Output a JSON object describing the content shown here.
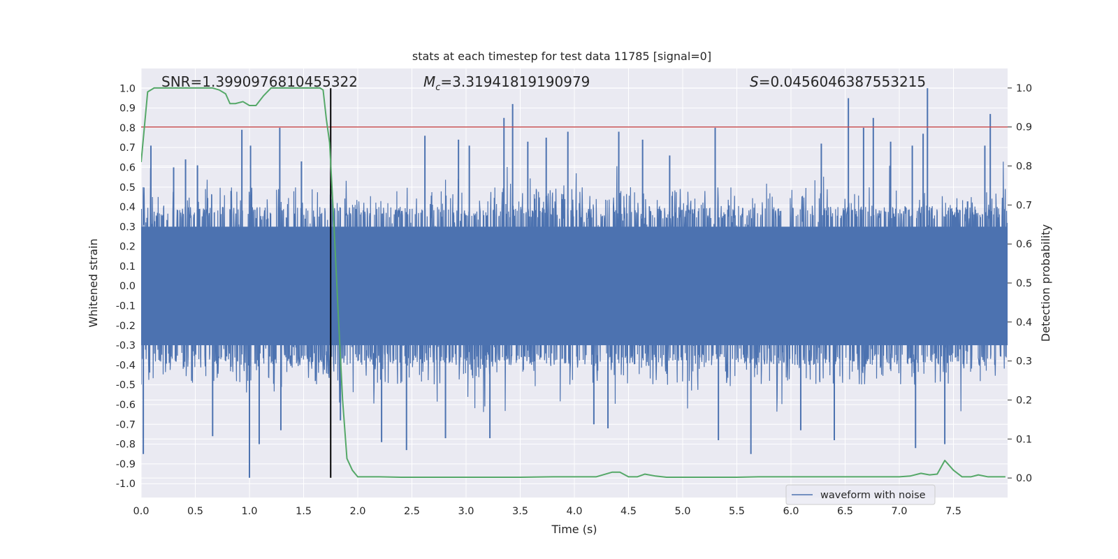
{
  "chart_data": {
    "type": "line",
    "title": "stats at each timestep for test data 11785 [signal=0]",
    "xlabel": "Time (s)",
    "ylabel": "Whitened strain",
    "y2label": "Detection probability",
    "xlim": [
      0.0,
      8.0
    ],
    "ylim": [
      -1.07,
      1.1
    ],
    "y2lim": [
      -0.05,
      1.05
    ],
    "x_ticks": [
      0.0,
      0.5,
      1.0,
      1.5,
      2.0,
      2.5,
      3.0,
      3.5,
      4.0,
      4.5,
      5.0,
      5.5,
      6.0,
      6.5,
      7.0,
      7.5
    ],
    "x_tick_labels": [
      "0.0",
      "0.5",
      "1.0",
      "1.5",
      "2.0",
      "2.5",
      "3.0",
      "3.5",
      "4.0",
      "4.5",
      "5.0",
      "5.5",
      "6.0",
      "6.5",
      "7.0",
      "7.5"
    ],
    "y_ticks": [
      1.0,
      0.9,
      0.8,
      0.7,
      0.6,
      0.5,
      0.4,
      0.3,
      0.2,
      0.1,
      0.0,
      -0.1,
      -0.2,
      -0.3,
      -0.4,
      -0.5,
      -0.6,
      -0.7,
      -0.8,
      -0.9,
      -1.0
    ],
    "y_tick_labels": [
      "1.0",
      "0.9",
      "0.8",
      "0.7",
      "0.6",
      "0.5",
      "0.4",
      "0.3",
      "0.2",
      "0.1",
      "0.0",
      "-0.1",
      "-0.2",
      "-0.3",
      "-0.4",
      "-0.5",
      "-0.6",
      "-0.7",
      "-0.8",
      "-0.9",
      "-1.0"
    ],
    "y2_ticks": [
      1.0,
      0.9,
      0.8,
      0.7,
      0.6,
      0.5,
      0.4,
      0.3,
      0.2,
      0.1,
      0.0
    ],
    "y2_tick_labels": [
      "1.0",
      "0.9",
      "0.8",
      "0.7",
      "0.6",
      "0.5",
      "0.4",
      "0.3",
      "0.2",
      "0.1",
      "0.0"
    ],
    "annotations": {
      "snr": "SNR=1.3990976810455322",
      "mc_symbol": "M",
      "mc_sub": "c",
      "mc_value": "=3.31941819190979",
      "s_symbol": "S",
      "s_value": "=0.0456046387553215"
    },
    "threshold_y2": 0.9,
    "detection_time": 1.75,
    "legend": {
      "label": "waveform with noise",
      "placement": "lower-right"
    },
    "waveform": {
      "name": "waveform with noise",
      "description": "dense noisy whitened strain, core roughly ±0.4 with spikes",
      "core_amplitude": 0.38,
      "spikes": [
        [
          0.02,
          -0.85
        ],
        [
          0.09,
          0.71
        ],
        [
          0.3,
          0.6
        ],
        [
          0.41,
          0.64
        ],
        [
          0.52,
          0.61
        ],
        [
          0.66,
          -0.76
        ],
        [
          0.93,
          0.79
        ],
        [
          1.0,
          -0.97
        ],
        [
          1.01,
          0.71
        ],
        [
          1.09,
          -0.8
        ],
        [
          1.28,
          0.8
        ],
        [
          1.29,
          -0.73
        ],
        [
          1.48,
          0.63
        ],
        [
          1.75,
          0.49
        ],
        [
          1.84,
          -0.68
        ],
        [
          2.22,
          -0.79
        ],
        [
          2.45,
          -0.83
        ],
        [
          2.62,
          0.76
        ],
        [
          2.81,
          -0.77
        ],
        [
          2.93,
          0.74
        ],
        [
          3.03,
          0.71
        ],
        [
          3.22,
          -0.77
        ],
        [
          3.35,
          0.85
        ],
        [
          3.43,
          0.92
        ],
        [
          3.57,
          0.73
        ],
        [
          3.74,
          0.75
        ],
        [
          3.94,
          0.78
        ],
        [
          4.18,
          -0.7
        ],
        [
          4.31,
          -0.72
        ],
        [
          4.41,
          0.78
        ],
        [
          4.63,
          0.74
        ],
        [
          4.88,
          0.66
        ],
        [
          5.3,
          0.8
        ],
        [
          5.33,
          -0.78
        ],
        [
          5.63,
          -0.85
        ],
        [
          6.09,
          -0.73
        ],
        [
          6.28,
          0.72
        ],
        [
          6.4,
          -0.78
        ],
        [
          6.53,
          0.95
        ],
        [
          6.67,
          0.8
        ],
        [
          6.76,
          0.85
        ],
        [
          6.92,
          0.73
        ],
        [
          7.12,
          0.71
        ],
        [
          7.15,
          -0.82
        ],
        [
          7.22,
          0.77
        ],
        [
          7.26,
          1.0
        ],
        [
          7.42,
          -0.8
        ],
        [
          7.79,
          0.71
        ],
        [
          7.84,
          0.87
        ]
      ]
    },
    "probability": {
      "name": "detection probability",
      "x": [
        0.0,
        0.03,
        0.06,
        0.12,
        0.2,
        0.3,
        0.4,
        0.5,
        0.6,
        0.66,
        0.72,
        0.78,
        0.82,
        0.87,
        0.94,
        1.0,
        1.06,
        1.13,
        1.2,
        1.26,
        1.32,
        1.4,
        1.5,
        1.6,
        1.65,
        1.68,
        1.71,
        1.74,
        1.78,
        1.82,
        1.86,
        1.9,
        1.95,
        2.0,
        2.1,
        2.2,
        2.4,
        2.6,
        3.0,
        3.3,
        3.5,
        3.8,
        4.0,
        4.2,
        4.35,
        4.42,
        4.5,
        4.58,
        4.65,
        4.75,
        4.85,
        5.0,
        5.2,
        5.5,
        5.7,
        5.9,
        6.1,
        6.4,
        6.7,
        7.0,
        7.1,
        7.2,
        7.28,
        7.35,
        7.42,
        7.5,
        7.58,
        7.66,
        7.73,
        7.82,
        7.9,
        7.98
      ],
      "y": [
        0.81,
        0.9,
        0.99,
        1.0,
        1.0,
        1.0,
        1.0,
        1.0,
        1.0,
        1.0,
        0.995,
        0.985,
        0.96,
        0.96,
        0.965,
        0.955,
        0.955,
        0.98,
        1.0,
        1.0,
        1.0,
        1.0,
        1.0,
        1.0,
        1.0,
        0.995,
        0.92,
        0.86,
        0.65,
        0.42,
        0.2,
        0.05,
        0.02,
        0.003,
        0.003,
        0.003,
        0.002,
        0.002,
        0.002,
        0.002,
        0.002,
        0.003,
        0.003,
        0.003,
        0.015,
        0.015,
        0.003,
        0.003,
        0.01,
        0.005,
        0.002,
        0.002,
        0.002,
        0.002,
        0.003,
        0.003,
        0.003,
        0.003,
        0.003,
        0.003,
        0.005,
        0.012,
        0.008,
        0.01,
        0.045,
        0.02,
        0.003,
        0.003,
        0.008,
        0.003,
        0.003,
        0.003
      ]
    },
    "colors": {
      "background": "#eaeaf2",
      "grid": "#ffffff",
      "waveform": "#4c72b0",
      "probability": "#55a868",
      "threshold": "#c44e52",
      "vline": "#000000",
      "text": "#262626"
    }
  }
}
